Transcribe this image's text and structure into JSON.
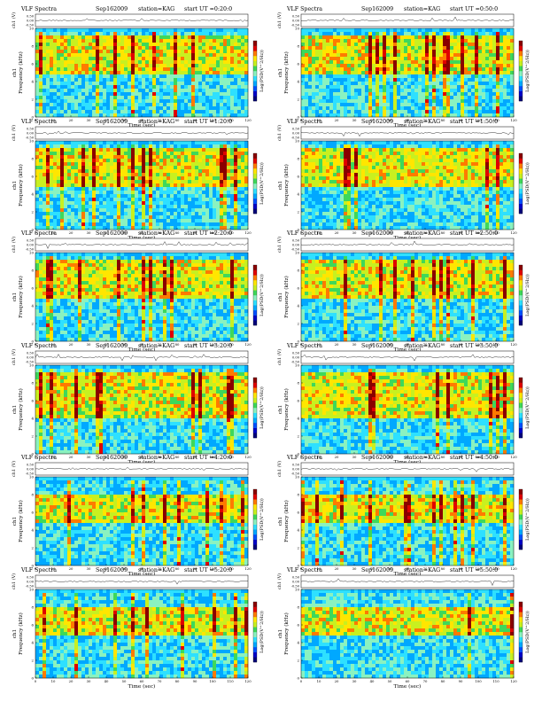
{
  "colors": {
    "scale": [
      "#00007a",
      "#0000c8",
      "#0050ff",
      "#00a8ff",
      "#2ee0ff",
      "#8af2c0",
      "#3ed85a",
      "#c8f020",
      "#ffe600",
      "#ff7a00",
      "#e00000",
      "#8a0000"
    ]
  },
  "labels": {
    "title_product": "VLF Spectra",
    "date": "Sep162009",
    "station": "station=KAG",
    "start_prefix": "start UT",
    "ch_axis": "ch1 (V)",
    "freq_axis": "ch1\nFrequency (kHz)",
    "time_axis": "Time (sec)",
    "colorbar": "Log(PSD(V^2/Hz))"
  },
  "chart_data": [
    {
      "type": "heatmap",
      "start": "=0:20:0",
      "ch_ticks": [
        "0.50",
        "0.00",
        "-0.50"
      ],
      "freq_ticks": [
        "0",
        "2",
        "4",
        "6",
        "8",
        "10"
      ],
      "time_ticks": [
        "0",
        "10",
        "20",
        "30",
        "40",
        "50",
        "60",
        "70",
        "80",
        "90",
        "100",
        "110",
        "120"
      ],
      "xlim": [
        0,
        120
      ],
      "ylim": [
        0,
        10
      ],
      "band": [
        5,
        9
      ]
    },
    {
      "type": "heatmap",
      "start": "=0:50:0",
      "ch_ticks": [
        "0.50",
        "0.00",
        "-0.50"
      ],
      "freq_ticks": [
        "0",
        "2",
        "4",
        "6",
        "8",
        "10"
      ],
      "time_ticks": [
        "0",
        "10",
        "20",
        "30",
        "40",
        "50",
        "60",
        "70",
        "80",
        "90",
        "100",
        "110",
        "120"
      ],
      "xlim": [
        0,
        120
      ],
      "ylim": [
        0,
        10
      ],
      "band": [
        5,
        9
      ]
    },
    {
      "type": "heatmap",
      "start": "=1:20:0",
      "ch_ticks": [
        "0.50",
        "0.00",
        "-0.50"
      ],
      "freq_ticks": [
        "0",
        "2",
        "4",
        "6",
        "8",
        "10"
      ],
      "time_ticks": [
        "0",
        "10",
        "20",
        "30",
        "40",
        "50",
        "60",
        "70",
        "80",
        "90",
        "100",
        "110",
        "120"
      ],
      "xlim": [
        0,
        120
      ],
      "ylim": [
        0,
        10
      ],
      "band": [
        5,
        9
      ]
    },
    {
      "type": "heatmap",
      "start": "=1:50:0",
      "ch_ticks": [
        "0.50",
        "0.00",
        "-0.50"
      ],
      "freq_ticks": [
        "0",
        "2",
        "4",
        "6",
        "8",
        "10"
      ],
      "time_ticks": [
        "0",
        "10",
        "20",
        "30",
        "40",
        "50",
        "60",
        "70",
        "80",
        "90",
        "100",
        "110",
        "120"
      ],
      "xlim": [
        0,
        120
      ],
      "ylim": [
        0,
        10
      ],
      "band": [
        5,
        9
      ]
    },
    {
      "type": "heatmap",
      "start": "=2:20:0",
      "ch_ticks": [
        "0.50",
        "0.00",
        "-0.50"
      ],
      "freq_ticks": [
        "0",
        "2",
        "4",
        "6",
        "8",
        "10"
      ],
      "time_ticks": [
        "0",
        "10",
        "20",
        "30",
        "40",
        "50",
        "60",
        "70",
        "80",
        "90",
        "100",
        "110",
        "120"
      ],
      "xlim": [
        0,
        120
      ],
      "ylim": [
        0,
        10
      ],
      "band": [
        5,
        9
      ]
    },
    {
      "type": "heatmap",
      "start": "=2:50:0",
      "ch_ticks": [
        "0.50",
        "0.00",
        "-0.50"
      ],
      "freq_ticks": [
        "0",
        "2",
        "4",
        "6",
        "8",
        "10"
      ],
      "time_ticks": [
        "0",
        "10",
        "20",
        "30",
        "40",
        "50",
        "60",
        "70",
        "80",
        "90",
        "100",
        "110",
        "120"
      ],
      "xlim": [
        0,
        120
      ],
      "ylim": [
        0,
        10
      ],
      "band": [
        5,
        9
      ]
    },
    {
      "type": "heatmap",
      "start": "=3:20:0",
      "ch_ticks": [
        "0.50",
        "0.00",
        "-0.50"
      ],
      "freq_ticks": [
        "0",
        "2",
        "4",
        "6",
        "8",
        "10"
      ],
      "time_ticks": [
        "0",
        "10",
        "20",
        "30",
        "40",
        "50",
        "60",
        "70",
        "80",
        "90",
        "100",
        "110",
        "120"
      ],
      "xlim": [
        0,
        120
      ],
      "ylim": [
        0,
        10
      ],
      "band": [
        4,
        9
      ]
    },
    {
      "type": "heatmap",
      "start": "=3:50:0",
      "ch_ticks": [
        "0.50",
        "0.00",
        "-0.50"
      ],
      "freq_ticks": [
        "0",
        "2",
        "4",
        "6",
        "8",
        "10"
      ],
      "time_ticks": [
        "0",
        "10",
        "20",
        "30",
        "40",
        "50",
        "60",
        "70",
        "80",
        "90",
        "100",
        "110",
        "120"
      ],
      "xlim": [
        0,
        120
      ],
      "ylim": [
        0,
        10
      ],
      "band": [
        4,
        9
      ]
    },
    {
      "type": "heatmap",
      "start": "=4:20:0",
      "ch_ticks": [
        "0.50",
        "0.00",
        "-0.50"
      ],
      "freq_ticks": [
        "0",
        "2",
        "4",
        "6",
        "8",
        "10"
      ],
      "time_ticks": [
        "0",
        "10",
        "20",
        "30",
        "40",
        "50",
        "60",
        "70",
        "80",
        "90",
        "100",
        "110",
        "120"
      ],
      "xlim": [
        0,
        120
      ],
      "ylim": [
        0,
        10
      ],
      "band": [
        5,
        8
      ]
    },
    {
      "type": "heatmap",
      "start": "=4:50:0",
      "ch_ticks": [
        "0.50",
        "0.00",
        "-0.50"
      ],
      "freq_ticks": [
        "0",
        "2",
        "4",
        "6",
        "8",
        "10"
      ],
      "time_ticks": [
        "0",
        "10",
        "20",
        "30",
        "40",
        "50",
        "60",
        "70",
        "80",
        "90",
        "100",
        "110",
        "120"
      ],
      "xlim": [
        0,
        120
      ],
      "ylim": [
        0,
        10
      ],
      "band": [
        5,
        8
      ]
    },
    {
      "type": "heatmap",
      "start": "=5:20:0",
      "ch_ticks": [
        "0.50",
        "0.00",
        "-0.50"
      ],
      "freq_ticks": [
        "0",
        "2",
        "4",
        "6",
        "8",
        "10"
      ],
      "time_ticks": [
        "0",
        "10",
        "20",
        "30",
        "40",
        "50",
        "60",
        "70",
        "80",
        "90",
        "100",
        "110",
        "120"
      ],
      "xlim": [
        0,
        120
      ],
      "ylim": [
        0,
        10
      ],
      "band": [
        5,
        8
      ]
    },
    {
      "type": "heatmap",
      "start": "=5:50:0",
      "ch_ticks": [
        "0.50",
        "0.00",
        "-0.50"
      ],
      "freq_ticks": [
        "0",
        "2",
        "4",
        "6",
        "8",
        "10"
      ],
      "time_ticks": [
        "0",
        "10",
        "20",
        "30",
        "40",
        "50",
        "60",
        "70",
        "80",
        "90",
        "100",
        "110",
        "120"
      ],
      "xlim": [
        0,
        120
      ],
      "ylim": [
        0,
        10
      ],
      "band": [
        5,
        8
      ]
    }
  ]
}
